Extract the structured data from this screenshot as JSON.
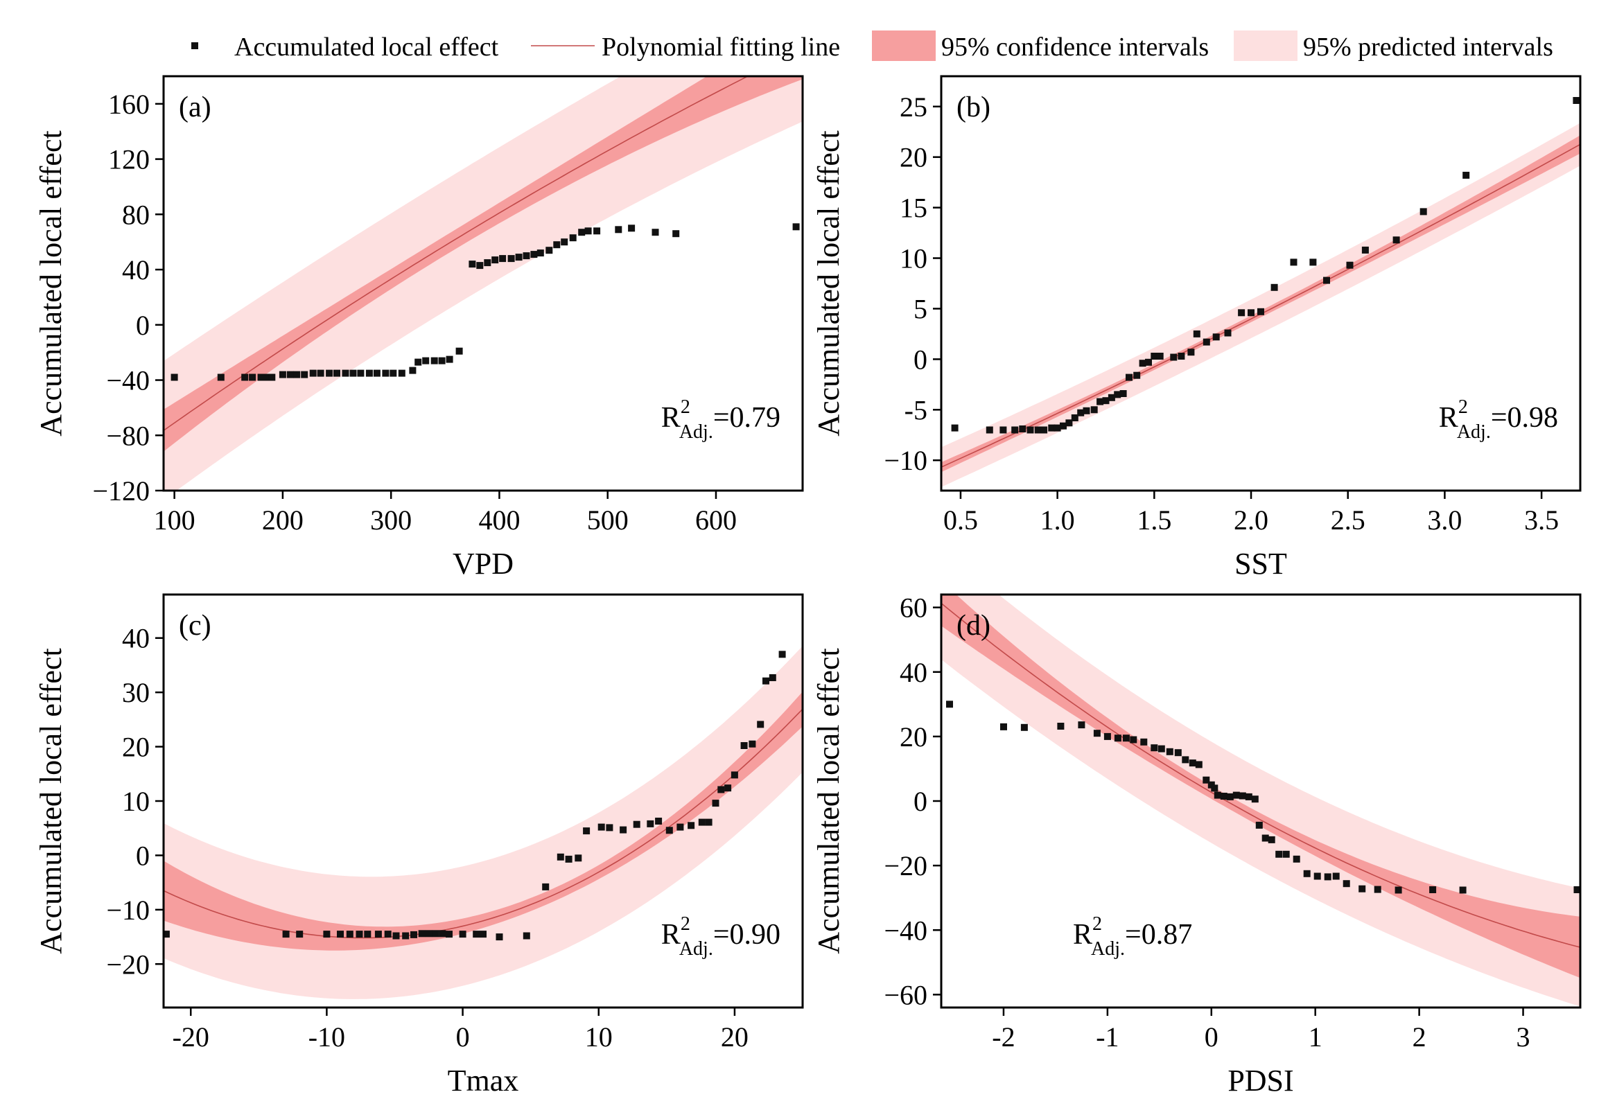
{
  "legend": {
    "points": "Accumulated local effect",
    "fit": "Polynomial fitting line",
    "confidence": "95% confidence intervals",
    "prediction": "95% predicted intervals"
  },
  "colors": {
    "point": "#111111",
    "fit_line": "#c24a4a",
    "confidence_band": "#f59a9a",
    "prediction_band": "#fde0e0"
  },
  "chart_data": [
    {
      "id": "a",
      "type": "scatter",
      "panel_label": "(a)",
      "xlabel": "VPD",
      "ylabel": "Accumulated local effect",
      "xlim": [
        90,
        680
      ],
      "ylim": [
        -120,
        180
      ],
      "xticks": [
        100,
        200,
        300,
        400,
        500,
        600
      ],
      "yticks": [
        -120,
        -80,
        -40,
        0,
        40,
        80,
        120,
        160
      ],
      "xtick_labels": [
        "100",
        "200",
        "300",
        "400",
        "500",
        "600"
      ],
      "ytick_labels": [
        "−120",
        "−80",
        "−40",
        "0",
        "40",
        "80",
        "120",
        "160"
      ],
      "r2_label": {
        "base": "R",
        "sup": "2",
        "sub": "Adj.",
        "value": "=0.79",
        "position": "bottom-right"
      },
      "fit": {
        "coef": [
          -127.31,
          0.5773,
          -0.0001414
        ],
        "conf_hw_min": 7,
        "conf_hw_edge": 22,
        "pred_hw": 45
      },
      "points": [
        [
          100,
          -38
        ],
        [
          143,
          -38
        ],
        [
          165,
          -38
        ],
        [
          172,
          -38
        ],
        [
          180,
          -38
        ],
        [
          185,
          -38
        ],
        [
          190,
          -38
        ],
        [
          200,
          -36
        ],
        [
          207,
          -36
        ],
        [
          213,
          -36
        ],
        [
          220,
          -36
        ],
        [
          228,
          -35
        ],
        [
          235,
          -35
        ],
        [
          243,
          -35
        ],
        [
          250,
          -35
        ],
        [
          258,
          -35
        ],
        [
          265,
          -35
        ],
        [
          272,
          -35
        ],
        [
          280,
          -35
        ],
        [
          287,
          -35
        ],
        [
          295,
          -35
        ],
        [
          302,
          -35
        ],
        [
          310,
          -35
        ],
        [
          320,
          -33
        ],
        [
          325,
          -27
        ],
        [
          332,
          -26
        ],
        [
          340,
          -26
        ],
        [
          347,
          -26
        ],
        [
          354,
          -25
        ],
        [
          363,
          -19
        ],
        [
          375,
          44
        ],
        [
          382,
          43
        ],
        [
          389,
          45
        ],
        [
          396,
          47
        ],
        [
          403,
          48
        ],
        [
          411,
          48
        ],
        [
          418,
          49
        ],
        [
          425,
          50
        ],
        [
          432,
          51
        ],
        [
          438,
          52
        ],
        [
          446,
          54
        ],
        [
          453,
          58
        ],
        [
          460,
          60
        ],
        [
          468,
          63
        ],
        [
          476,
          67
        ],
        [
          482,
          68
        ],
        [
          490,
          68
        ],
        [
          510,
          69
        ],
        [
          522,
          70
        ],
        [
          544,
          67
        ],
        [
          563,
          66
        ],
        [
          674,
          71
        ]
      ]
    },
    {
      "id": "b",
      "type": "scatter",
      "panel_label": "(b)",
      "xlabel": "SST",
      "ylabel": "Accumulated local effect",
      "xlim": [
        0.4,
        3.7
      ],
      "ylim": [
        -13,
        28
      ],
      "xticks": [
        0.5,
        1.0,
        1.5,
        2.0,
        2.5,
        3.0,
        3.5
      ],
      "yticks": [
        -10,
        -5,
        0,
        5,
        10,
        15,
        20,
        25
      ],
      "xtick_labels": [
        "0.5",
        "1.0",
        "1.5",
        "2.0",
        "2.5",
        "3.0",
        "3.5"
      ],
      "ytick_labels": [
        "−10",
        "-5",
        "0",
        "5",
        "10",
        "15",
        "20",
        "25"
      ],
      "r2_label": {
        "base": "R",
        "sup": "2",
        "sub": "Adj.",
        "value": "=0.98",
        "position": "bottom-right"
      },
      "fit": {
        "coef": [
          -14.11,
          8.45,
          0.3
        ],
        "conf_hw_min": 0.3,
        "conf_hw_edge": 0.9,
        "pred_hw": 1.8
      },
      "points": [
        [
          0.47,
          -6.8
        ],
        [
          0.65,
          -7.0
        ],
        [
          0.72,
          -7.0
        ],
        [
          0.78,
          -7.0
        ],
        [
          0.82,
          -6.9
        ],
        [
          0.86,
          -7.0
        ],
        [
          0.9,
          -7.0
        ],
        [
          0.93,
          -7.0
        ],
        [
          0.97,
          -6.8
        ],
        [
          1.0,
          -6.8
        ],
        [
          1.03,
          -6.6
        ],
        [
          1.06,
          -6.3
        ],
        [
          1.09,
          -5.8
        ],
        [
          1.12,
          -5.3
        ],
        [
          1.15,
          -5.1
        ],
        [
          1.19,
          -5.0
        ],
        [
          1.22,
          -4.2
        ],
        [
          1.25,
          -4.1
        ],
        [
          1.28,
          -3.8
        ],
        [
          1.31,
          -3.5
        ],
        [
          1.34,
          -3.4
        ],
        [
          1.37,
          -1.8
        ],
        [
          1.41,
          -1.6
        ],
        [
          1.44,
          -0.4
        ],
        [
          1.47,
          -0.3
        ],
        [
          1.5,
          0.3
        ],
        [
          1.53,
          0.3
        ],
        [
          1.6,
          0.2
        ],
        [
          1.64,
          0.3
        ],
        [
          1.69,
          0.7
        ],
        [
          1.72,
          2.5
        ],
        [
          1.77,
          1.7
        ],
        [
          1.82,
          2.2
        ],
        [
          1.88,
          2.6
        ],
        [
          1.95,
          4.6
        ],
        [
          2.0,
          4.6
        ],
        [
          2.05,
          4.7
        ],
        [
          2.12,
          7.1
        ],
        [
          2.22,
          9.6
        ],
        [
          2.32,
          9.6
        ],
        [
          2.39,
          7.8
        ],
        [
          2.51,
          9.3
        ],
        [
          2.59,
          10.8
        ],
        [
          2.75,
          11.8
        ],
        [
          2.89,
          14.6
        ],
        [
          3.11,
          18.2
        ],
        [
          3.68,
          25.6
        ]
      ]
    },
    {
      "id": "c",
      "type": "scatter",
      "panel_label": "(c)",
      "xlabel": "Tmax",
      "ylabel": "Accumulated local effect",
      "xlim": [
        -22,
        25
      ],
      "ylim": [
        -28,
        48
      ],
      "xticks": [
        -20,
        -10,
        0,
        10,
        20
      ],
      "yticks": [
        -20,
        -10,
        0,
        10,
        20,
        30,
        40
      ],
      "xtick_labels": [
        "-20",
        "-10",
        "0",
        "10",
        "20"
      ],
      "ytick_labels": [
        "−20",
        "−10",
        "0",
        "10",
        "20",
        "30",
        "40"
      ],
      "r2_label": {
        "base": "R",
        "sup": "2",
        "sub": "Adj.",
        "value": "=0.90",
        "position": "bottom-right"
      },
      "fit": {
        "coef": [
          -13.02,
          0.5903,
          0.0403
        ],
        "conf_hw_min": 1.2,
        "conf_hw_edge": 5.5,
        "pred_hw": 10.5
      },
      "points": [
        [
          -21.8,
          -14.5
        ],
        [
          -13,
          -14.5
        ],
        [
          -12,
          -14.5
        ],
        [
          -10,
          -14.5
        ],
        [
          -9,
          -14.5
        ],
        [
          -8.3,
          -14.5
        ],
        [
          -7.6,
          -14.5
        ],
        [
          -7,
          -14.5
        ],
        [
          -6.2,
          -14.5
        ],
        [
          -5.5,
          -14.5
        ],
        [
          -4.9,
          -14.8
        ],
        [
          -4.2,
          -14.8
        ],
        [
          -3.6,
          -14.6
        ],
        [
          -3,
          -14.4
        ],
        [
          -2.5,
          -14.4
        ],
        [
          -2,
          -14.4
        ],
        [
          -1.5,
          -14.4
        ],
        [
          -1,
          -14.5
        ],
        [
          0,
          -14.5
        ],
        [
          1,
          -14.5
        ],
        [
          1.5,
          -14.5
        ],
        [
          2.7,
          -15
        ],
        [
          4.7,
          -14.8
        ],
        [
          6.1,
          -5.8
        ],
        [
          7.2,
          -0.3
        ],
        [
          7.8,
          -0.7
        ],
        [
          8.5,
          -0.5
        ],
        [
          9.1,
          4.5
        ],
        [
          10.2,
          5.2
        ],
        [
          10.8,
          5.1
        ],
        [
          11.8,
          4.7
        ],
        [
          12.8,
          5.7
        ],
        [
          13.8,
          5.8
        ],
        [
          14.4,
          6.3
        ],
        [
          15.2,
          4.6
        ],
        [
          16,
          5.2
        ],
        [
          16.8,
          5.5
        ],
        [
          17.6,
          6.1
        ],
        [
          18.1,
          6.1
        ],
        [
          18.6,
          9.6
        ],
        [
          19,
          12.1
        ],
        [
          19.5,
          12.4
        ],
        [
          20,
          14.8
        ],
        [
          20.7,
          20.2
        ],
        [
          21.3,
          20.5
        ],
        [
          21.9,
          24.1
        ],
        [
          22.3,
          32.1
        ],
        [
          22.8,
          32.7
        ],
        [
          23.5,
          37
        ]
      ]
    },
    {
      "id": "d",
      "type": "scatter",
      "panel_label": "(d)",
      "xlabel": "PDSI",
      "ylabel": "Accumulated local effect",
      "xlim": [
        -2.6,
        3.55
      ],
      "ylim": [
        -64,
        64
      ],
      "xticks": [
        -2,
        -1,
        0,
        1,
        2,
        3
      ],
      "yticks": [
        -60,
        -40,
        -20,
        0,
        20,
        40,
        60
      ],
      "xtick_labels": [
        "-2",
        "-1",
        "0",
        "1",
        "2",
        "3"
      ],
      "ytick_labels": [
        "−60",
        "−40",
        "−20",
        "0",
        "20",
        "40",
        "60"
      ],
      "r2_label": {
        "base": "R",
        "sup": "2",
        "sub": "Adj.",
        "value": "=0.87",
        "position": "bottom-left"
      },
      "fit": {
        "coef": [
          2.69,
          -18.73,
          1.465
        ],
        "conf_hw_min": 2,
        "conf_hw_edge": 9.5,
        "pred_hw": 15
      },
      "points": [
        [
          -2.52,
          30
        ],
        [
          -2.0,
          23
        ],
        [
          -1.8,
          22.8
        ],
        [
          -1.45,
          23.2
        ],
        [
          -1.25,
          23.6
        ],
        [
          -1.1,
          21
        ],
        [
          -1.0,
          20
        ],
        [
          -0.9,
          19.5
        ],
        [
          -0.82,
          19.5
        ],
        [
          -0.75,
          19
        ],
        [
          -0.65,
          18.3
        ],
        [
          -0.55,
          16.5
        ],
        [
          -0.48,
          16.2
        ],
        [
          -0.4,
          15.3
        ],
        [
          -0.32,
          15
        ],
        [
          -0.25,
          12.8
        ],
        [
          -0.18,
          11.8
        ],
        [
          -0.12,
          11.3
        ],
        [
          -0.05,
          6.5
        ],
        [
          0.0,
          5
        ],
        [
          0.03,
          4
        ],
        [
          0.06,
          1.8
        ],
        [
          0.12,
          1.5
        ],
        [
          0.18,
          1.3
        ],
        [
          0.24,
          1.8
        ],
        [
          0.3,
          1.6
        ],
        [
          0.36,
          1.3
        ],
        [
          0.42,
          0.6
        ],
        [
          0.46,
          -7.5
        ],
        [
          0.52,
          -11.5
        ],
        [
          0.58,
          -12
        ],
        [
          0.65,
          -16.5
        ],
        [
          0.72,
          -16.5
        ],
        [
          0.82,
          -18
        ],
        [
          0.92,
          -22.5
        ],
        [
          1.02,
          -23.3
        ],
        [
          1.12,
          -23.5
        ],
        [
          1.2,
          -23.3
        ],
        [
          1.3,
          -25.6
        ],
        [
          1.45,
          -27.2
        ],
        [
          1.6,
          -27.4
        ],
        [
          1.8,
          -27.6
        ],
        [
          2.13,
          -27.5
        ],
        [
          2.42,
          -27.6
        ],
        [
          3.52,
          -27.5
        ]
      ]
    }
  ]
}
